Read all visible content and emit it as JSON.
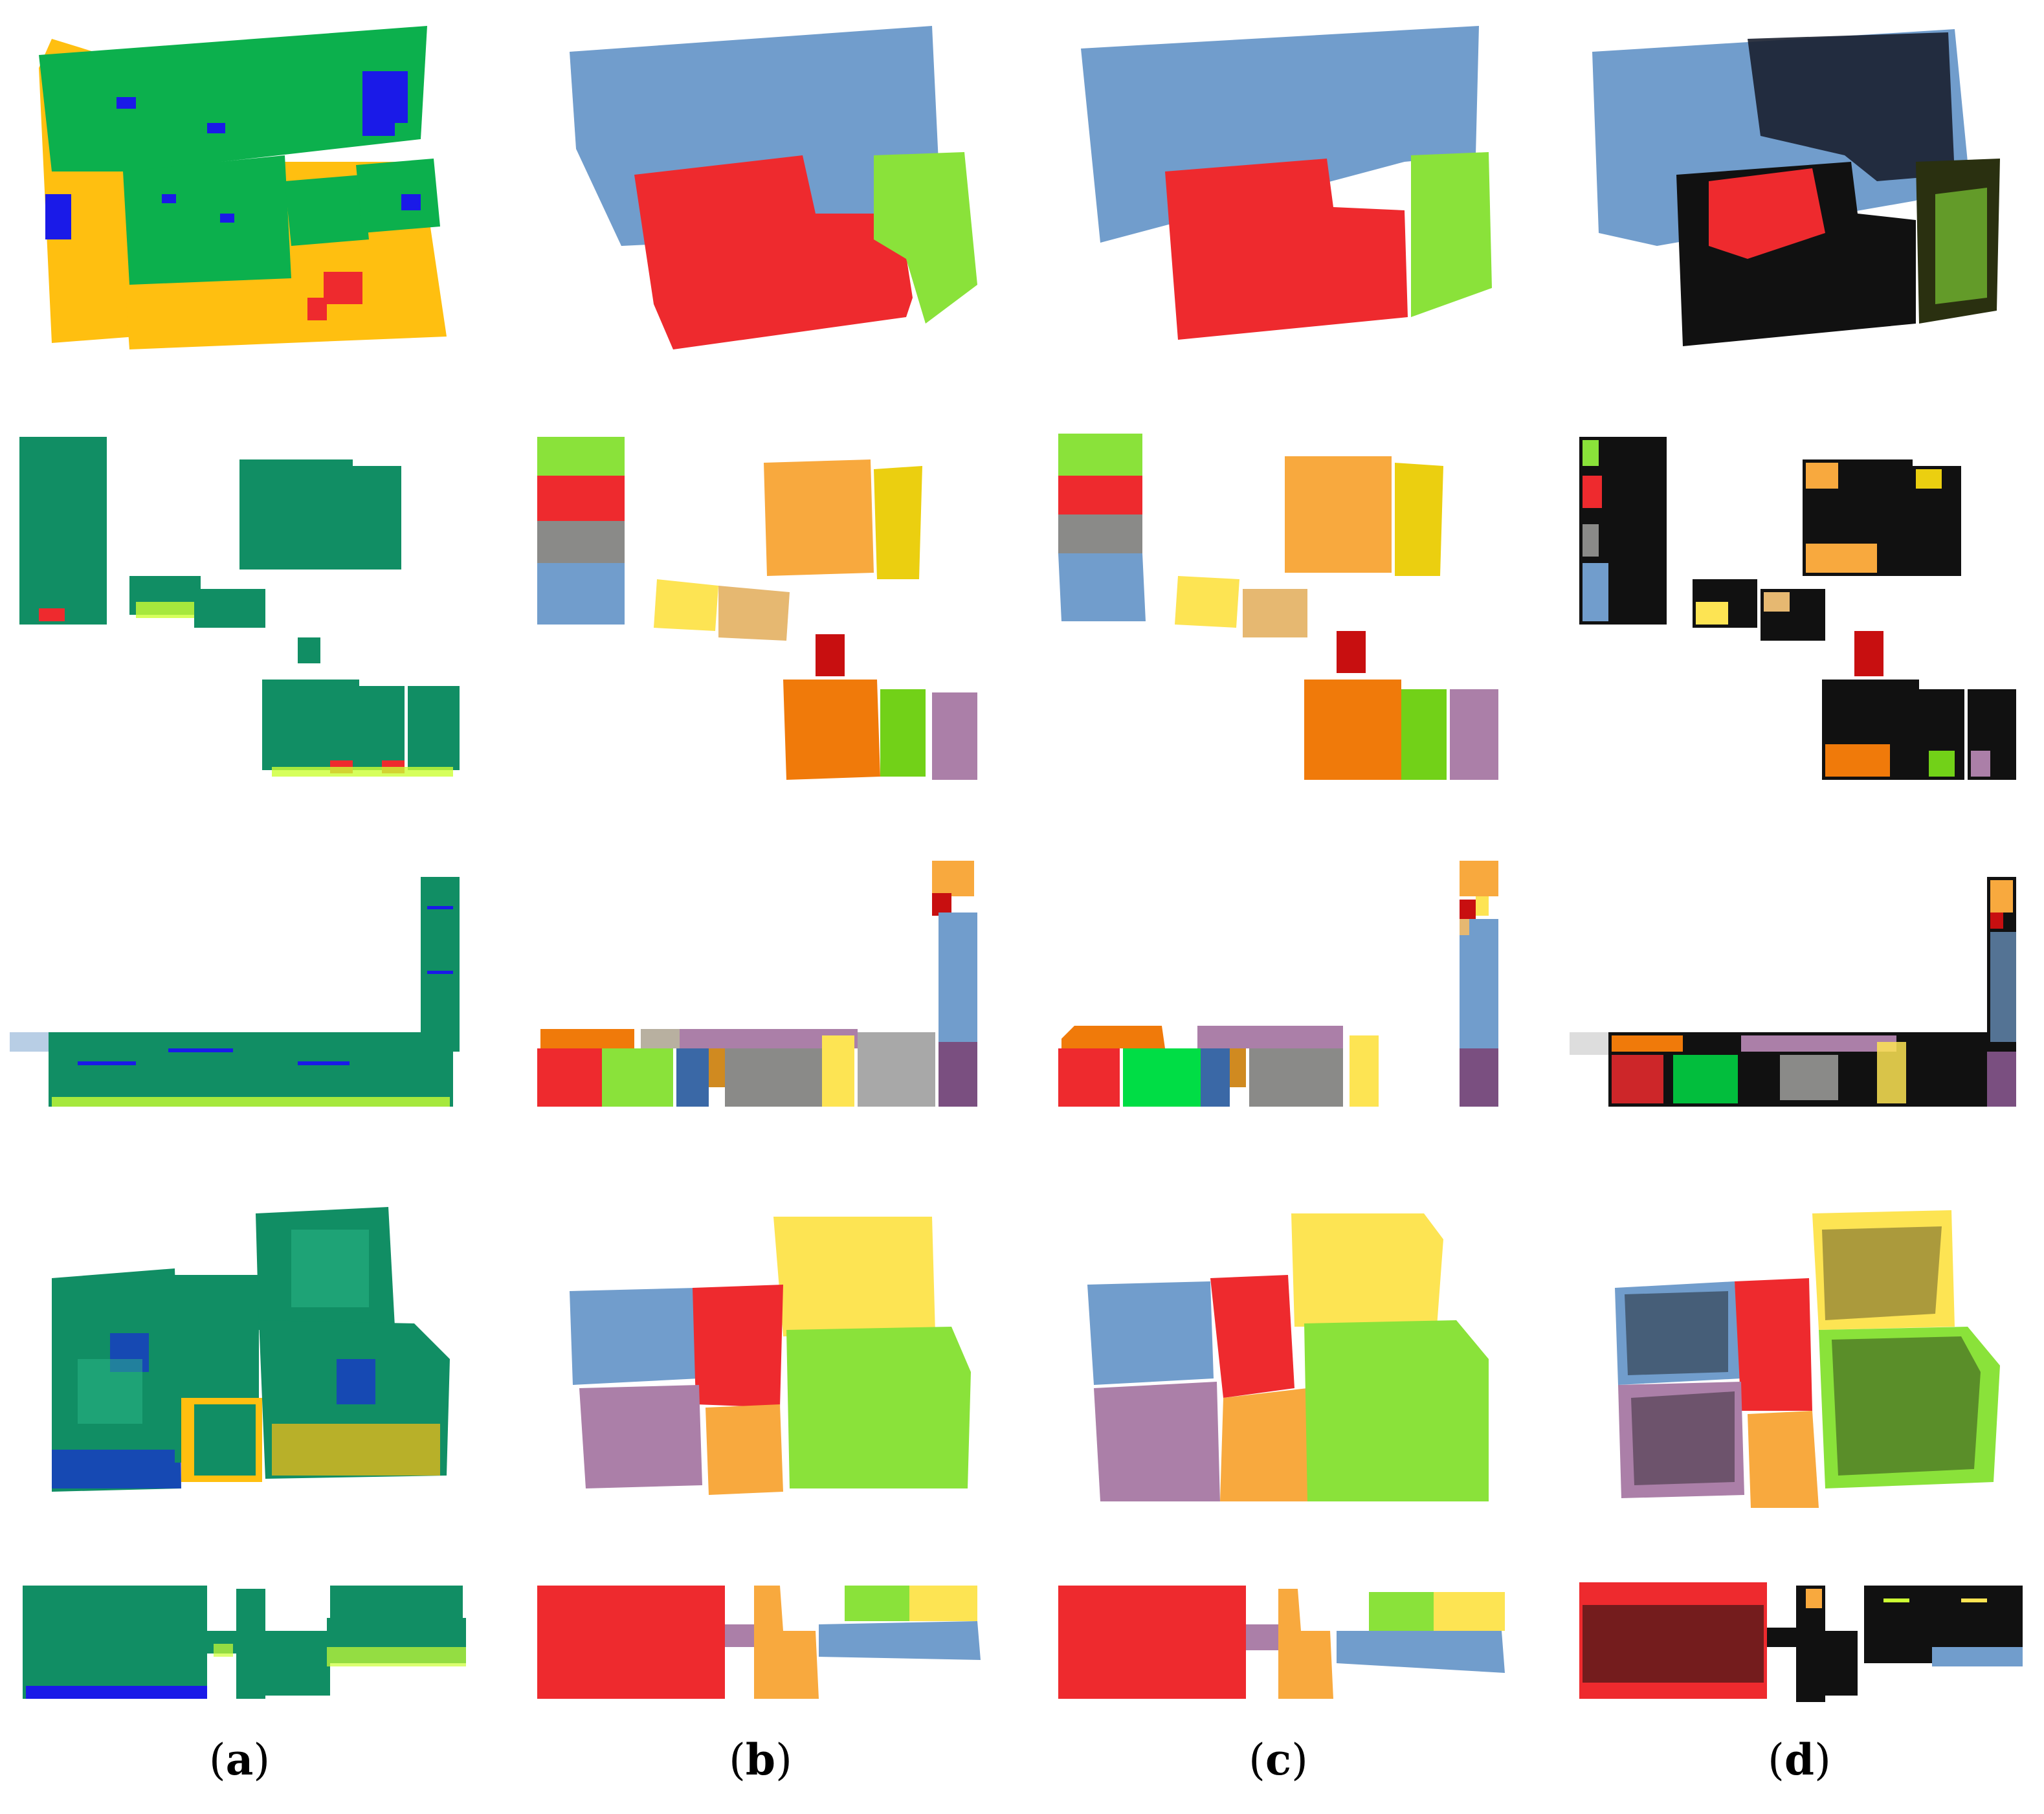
{
  "figure": {
    "columns": [
      {
        "letter": "a",
        "caption": "(a)"
      },
      {
        "letter": "b",
        "caption": "(b)"
      },
      {
        "letter": "c",
        "caption": "(c)"
      },
      {
        "letter": "d",
        "caption": "(d)"
      }
    ],
    "palette": {
      "red": "#ee2a2e",
      "blue_gray": "#719dcc",
      "light_green": "#8ae23a",
      "orange": "#f8a93e",
      "yellow": "#fde453",
      "tan": "#e6b871",
      "dark_orange": "#f07a0a",
      "lime": "#72d118",
      "mauve": "#ab7fa8",
      "gray": "#8a8a88",
      "mustard": "#ebcf10",
      "dark_red": "#c80f10",
      "teal": "#118e64",
      "green": "#0cb04d",
      "amber": "#ffbf10",
      "blue": "#1a1ae8",
      "bright_green": "#00dd45",
      "steel_blue": "#3a68a6",
      "plum": "#7a4f80",
      "black": "#111111"
    }
  }
}
